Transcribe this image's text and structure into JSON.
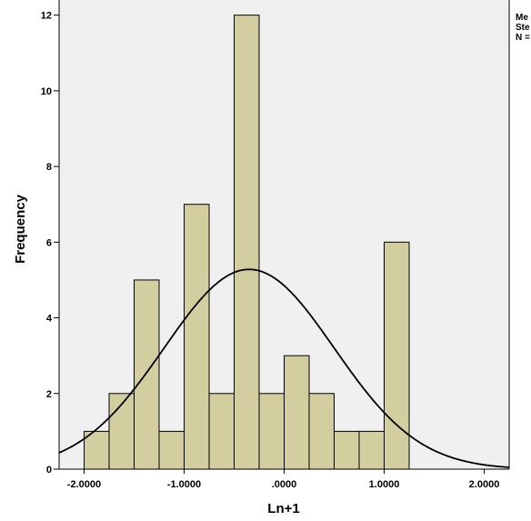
{
  "chart_data": {
    "type": "bar",
    "subtype": "histogram",
    "xlabel": "Ln+1",
    "ylabel": "Frequency",
    "xlim": [
      -2.25,
      2.25
    ],
    "ylim": [
      0,
      12.4
    ],
    "bin_width": 0.25,
    "bins": [
      {
        "from": -2.0,
        "to": -1.75,
        "count": 1
      },
      {
        "from": -1.75,
        "to": -1.5,
        "count": 2
      },
      {
        "from": -1.5,
        "to": -1.25,
        "count": 5
      },
      {
        "from": -1.25,
        "to": -1.0,
        "count": 1
      },
      {
        "from": -1.0,
        "to": -0.75,
        "count": 7
      },
      {
        "from": -0.75,
        "to": -0.5,
        "count": 2
      },
      {
        "from": -0.5,
        "to": -0.25,
        "count": 12
      },
      {
        "from": -0.25,
        "to": 0.0,
        "count": 2
      },
      {
        "from": 0.0,
        "to": 0.25,
        "count": 3
      },
      {
        "from": 0.25,
        "to": 0.5,
        "count": 2
      },
      {
        "from": 0.5,
        "to": 0.75,
        "count": 1
      },
      {
        "from": 0.75,
        "to": 1.0,
        "count": 1
      },
      {
        "from": 1.0,
        "to": 1.25,
        "count": 6
      }
    ],
    "x_ticks": [
      -2.0,
      -1.0,
      0.0,
      1.0,
      2.0
    ],
    "x_tick_labels": [
      "-2.0000",
      "-1.0000",
      ".0000",
      "1.0000",
      "2.0000"
    ],
    "y_ticks": [
      0,
      2,
      4,
      6,
      8,
      10,
      12
    ],
    "y_tick_labels": [
      "0",
      "2",
      "4",
      "6",
      "8",
      "10",
      "12"
    ],
    "normal_curve": {
      "mean": -0.35,
      "sd": 0.85,
      "n": 45
    },
    "stats_labels": [
      "Me",
      "Ste",
      "N ="
    ],
    "colors": {
      "plot_background": "#f0f0f0",
      "bar_fill": "#d3ce9f",
      "bar_stroke": "#000000",
      "curve": "#000000"
    }
  }
}
